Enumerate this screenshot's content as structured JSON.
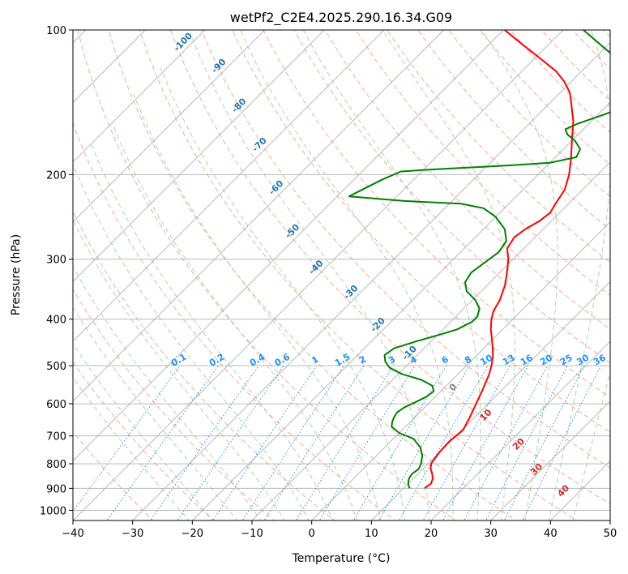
{
  "chart_data": {
    "type": "skewt",
    "title": "wetPf2_C2E4.2025.290.16.34.G09",
    "xlabel": "Temperature (°C)",
    "ylabel": "Pressure (hPa)",
    "xlim": [
      -40,
      50
    ],
    "ylim_hpa": [
      1050,
      100
    ],
    "x_ticks": [
      -40,
      -30,
      -20,
      -10,
      0,
      10,
      20,
      30,
      40,
      50
    ],
    "y_ticks": [
      1000,
      900,
      800,
      700,
      600,
      500,
      400,
      300,
      200,
      100
    ],
    "colors": {
      "temperature": "#ff0000",
      "dewpoint": "#008000",
      "isotherm": "#b0b0b0",
      "dry_adiabat": "#f9a98f",
      "moist_adiabat": "#a9d7a9",
      "mixing_ratio": "#1e90ff",
      "dry_label": "#1f77b4",
      "moist_label": "#d62728"
    },
    "series": [
      {
        "name": "Temperature",
        "points": [
          {
            "p": 900,
            "t": 13.5
          },
          {
            "p": 880,
            "t": 13.8
          },
          {
            "p": 860,
            "t": 13.3
          },
          {
            "p": 840,
            "t": 12.4
          },
          {
            "p": 820,
            "t": 11.3
          },
          {
            "p": 800,
            "t": 10.5
          },
          {
            "p": 760,
            "t": 10.0
          },
          {
            "p": 720,
            "t": 9.8
          },
          {
            "p": 700,
            "t": 10.0
          },
          {
            "p": 680,
            "t": 10.2
          },
          {
            "p": 640,
            "t": 9.2
          },
          {
            "p": 600,
            "t": 8.0
          },
          {
            "p": 560,
            "t": 6.7
          },
          {
            "p": 520,
            "t": 5.2
          },
          {
            "p": 500,
            "t": 4.2
          },
          {
            "p": 480,
            "t": 3.0
          },
          {
            "p": 460,
            "t": 1.5
          },
          {
            "p": 440,
            "t": -0.2
          },
          {
            "p": 420,
            "t": -2.0
          },
          {
            "p": 400,
            "t": -3.6
          },
          {
            "p": 385,
            "t": -4.6
          },
          {
            "p": 365,
            "t": -5.4
          },
          {
            "p": 340,
            "t": -7.0
          },
          {
            "p": 320,
            "t": -8.8
          },
          {
            "p": 300,
            "t": -10.8
          },
          {
            "p": 285,
            "t": -12.8
          },
          {
            "p": 270,
            "t": -13.5
          },
          {
            "p": 260,
            "t": -13.0
          },
          {
            "p": 250,
            "t": -12.0
          },
          {
            "p": 240,
            "t": -11.6
          },
          {
            "p": 230,
            "t": -12.2
          },
          {
            "p": 215,
            "t": -13.0
          },
          {
            "p": 200,
            "t": -14.8
          },
          {
            "p": 185,
            "t": -17.2
          },
          {
            "p": 170,
            "t": -20.0
          },
          {
            "p": 155,
            "t": -23.0
          },
          {
            "p": 148,
            "t": -24.8
          },
          {
            "p": 142,
            "t": -26.4
          },
          {
            "p": 135,
            "t": -28.4
          },
          {
            "p": 128,
            "t": -31.2
          },
          {
            "p": 122,
            "t": -34.2
          },
          {
            "p": 115,
            "t": -38.8
          },
          {
            "p": 108,
            "t": -43.8
          },
          {
            "p": 100,
            "t": -49.8
          }
        ]
      },
      {
        "name": "Dewpoint",
        "points": [
          {
            "p": 900,
            "t": 11.0
          },
          {
            "p": 880,
            "t": 10.0
          },
          {
            "p": 860,
            "t": 9.3
          },
          {
            "p": 840,
            "t": 9.0
          },
          {
            "p": 820,
            "t": 9.3
          },
          {
            "p": 800,
            "t": 8.8
          },
          {
            "p": 770,
            "t": 7.7
          },
          {
            "p": 740,
            "t": 6.0
          },
          {
            "p": 710,
            "t": 3.4
          },
          {
            "p": 690,
            "t": 0.0
          },
          {
            "p": 670,
            "t": -2.3
          },
          {
            "p": 655,
            "t": -3.0
          },
          {
            "p": 640,
            "t": -3.5
          },
          {
            "p": 625,
            "t": -3.8
          },
          {
            "p": 610,
            "t": -3.4
          },
          {
            "p": 595,
            "t": -2.4
          },
          {
            "p": 580,
            "t": -1.5
          },
          {
            "p": 565,
            "t": -1.2
          },
          {
            "p": 550,
            "t": -2.4
          },
          {
            "p": 535,
            "t": -5.2
          },
          {
            "p": 520,
            "t": -9.5
          },
          {
            "p": 505,
            "t": -12.5
          },
          {
            "p": 490,
            "t": -14.3
          },
          {
            "p": 475,
            "t": -15.5
          },
          {
            "p": 460,
            "t": -15.0
          },
          {
            "p": 445,
            "t": -12.5
          },
          {
            "p": 430,
            "t": -9.5
          },
          {
            "p": 420,
            "t": -7.6
          },
          {
            "p": 405,
            "t": -6.4
          },
          {
            "p": 395,
            "t": -6.4
          },
          {
            "p": 380,
            "t": -7.4
          },
          {
            "p": 365,
            "t": -9.5
          },
          {
            "p": 350,
            "t": -12.4
          },
          {
            "p": 335,
            "t": -14.2
          },
          {
            "p": 320,
            "t": -14.8
          },
          {
            "p": 305,
            "t": -14.2
          },
          {
            "p": 290,
            "t": -13.6
          },
          {
            "p": 275,
            "t": -14.2
          },
          {
            "p": 260,
            "t": -16.4
          },
          {
            "p": 245,
            "t": -20.0
          },
          {
            "p": 235,
            "t": -23.5
          },
          {
            "p": 230,
            "t": -28.0
          },
          {
            "p": 227,
            "t": -38.0
          },
          {
            "p": 224,
            "t": -44.0
          },
          {
            "p": 222,
            "t": -48.0
          },
          {
            "p": 214,
            "t": -46.8
          },
          {
            "p": 205,
            "t": -45.3
          },
          {
            "p": 197,
            "t": -43.5
          },
          {
            "p": 195,
            "t": -38.0
          },
          {
            "p": 192,
            "t": -28.0
          },
          {
            "p": 189,
            "t": -20.0
          },
          {
            "p": 184,
            "t": -16.5
          },
          {
            "p": 177,
            "t": -17.2
          },
          {
            "p": 170,
            "t": -19.5
          },
          {
            "p": 165,
            "t": -21.8
          },
          {
            "p": 161,
            "t": -23.0
          },
          {
            "p": 157,
            "t": -22.0
          },
          {
            "p": 150,
            "t": -19.0
          },
          {
            "p": 144,
            "t": -16.6
          },
          {
            "p": 137,
            "t": -15.8
          },
          {
            "p": 130,
            "t": -17.8
          },
          {
            "p": 122,
            "t": -21.8
          },
          {
            "p": 115,
            "t": -26.0
          },
          {
            "p": 108,
            "t": -30.8
          },
          {
            "p": 100,
            "t": -36.6
          }
        ]
      }
    ],
    "dry_adiabat_labels": [
      "-100",
      "-90",
      "-80",
      "-70",
      "-60",
      "-50",
      "-40",
      "-30",
      "-20",
      "-10"
    ],
    "moist_adiabat_labels": [
      "0",
      "10",
      "20",
      "30",
      "40"
    ],
    "mixing_ratio_labels": [
      "0.1",
      "0.2",
      "0.4",
      "0.6",
      "1",
      "1.5",
      "2",
      "3",
      "4",
      "6",
      "8",
      "10",
      "13",
      "16",
      "20",
      "25",
      "30",
      "36"
    ]
  }
}
